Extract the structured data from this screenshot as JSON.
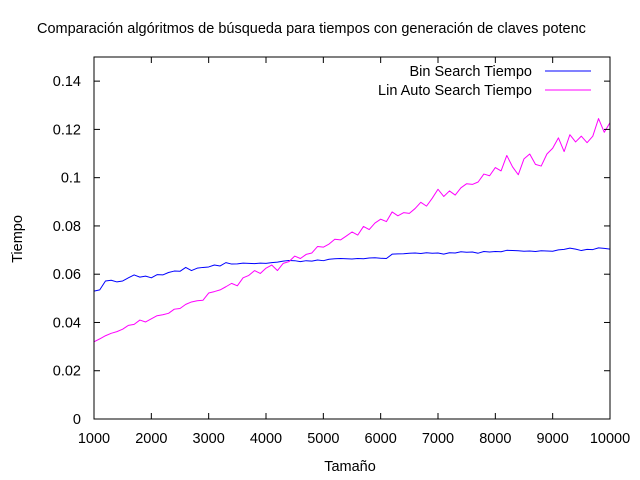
{
  "chart_data": {
    "type": "line",
    "title": "Comparación algóritmos de búsqueda para tiempos con generación de claves potenc",
    "xlabel": "Tamaño",
    "ylabel": "Tiempo",
    "xlim": [
      1000,
      10000
    ],
    "ylim": [
      0,
      0.15
    ],
    "xticks": [
      1000,
      2000,
      3000,
      4000,
      5000,
      6000,
      7000,
      8000,
      9000,
      10000
    ],
    "yticks": [
      0,
      0.02,
      0.04,
      0.06,
      0.08,
      0.1,
      0.12,
      0.14
    ],
    "xtick_labels": [
      "1000",
      "2000",
      "3000",
      "4000",
      "5000",
      "6000",
      "7000",
      "8000",
      "9000",
      "10000"
    ],
    "ytick_labels": [
      "0",
      "0.02",
      "0.04",
      "0.06",
      "0.08",
      "0.1",
      "0.12",
      "0.14"
    ],
    "grid": false,
    "legend_position": "top-right",
    "x": [
      1000,
      1100,
      1200,
      1300,
      1400,
      1500,
      1600,
      1700,
      1800,
      1900,
      2000,
      2100,
      2200,
      2300,
      2400,
      2500,
      2600,
      2700,
      2800,
      2900,
      3000,
      3100,
      3200,
      3300,
      3400,
      3500,
      3600,
      3700,
      3800,
      3900,
      4000,
      4100,
      4200,
      4300,
      4400,
      4500,
      4600,
      4700,
      4800,
      4900,
      5000,
      5100,
      5200,
      5300,
      5400,
      5500,
      5600,
      5700,
      5800,
      5900,
      6000,
      6100,
      6200,
      6300,
      6400,
      6500,
      6600,
      6700,
      6800,
      6900,
      7000,
      7100,
      7200,
      7300,
      7400,
      7500,
      7600,
      7700,
      7800,
      7900,
      8000,
      8100,
      8200,
      8300,
      8400,
      8500,
      8600,
      8700,
      8800,
      8900,
      9000,
      9100,
      9200,
      9300,
      9400,
      9500,
      9600,
      9700,
      9800,
      9900,
      10000
    ],
    "series": [
      {
        "name": "Bin Search Tiempo",
        "color": "#0000ff",
        "values": [
          0.053,
          0.0535,
          0.0572,
          0.0575,
          0.0568,
          0.0572,
          0.0585,
          0.0597,
          0.0588,
          0.0592,
          0.0585,
          0.0598,
          0.0597,
          0.0607,
          0.0613,
          0.0612,
          0.0628,
          0.0615,
          0.0625,
          0.0628,
          0.063,
          0.0638,
          0.0634,
          0.0648,
          0.0642,
          0.0643,
          0.0646,
          0.0645,
          0.0644,
          0.0646,
          0.0645,
          0.0648,
          0.065,
          0.0654,
          0.0657,
          0.0656,
          0.0652,
          0.0656,
          0.0654,
          0.0659,
          0.0656,
          0.0662,
          0.0664,
          0.0665,
          0.0664,
          0.0663,
          0.0665,
          0.0664,
          0.0667,
          0.0668,
          0.0666,
          0.0665,
          0.0683,
          0.0684,
          0.0685,
          0.0687,
          0.0688,
          0.0686,
          0.0689,
          0.0687,
          0.0688,
          0.0683,
          0.0689,
          0.0688,
          0.0693,
          0.0691,
          0.0692,
          0.0687,
          0.0694,
          0.0692,
          0.0694,
          0.0693,
          0.0699,
          0.0698,
          0.0697,
          0.0695,
          0.0696,
          0.0694,
          0.0697,
          0.0696,
          0.0695,
          0.0701,
          0.0703,
          0.0708,
          0.0704,
          0.0698,
          0.0703,
          0.0702,
          0.0709,
          0.0707,
          0.0704
        ]
      },
      {
        "name": "Lin Auto Search Tiempo",
        "color": "#ff00ff",
        "values": [
          0.032,
          0.0332,
          0.0345,
          0.0355,
          0.0362,
          0.0372,
          0.0388,
          0.0392,
          0.041,
          0.0402,
          0.0415,
          0.0428,
          0.0432,
          0.0438,
          0.0455,
          0.0458,
          0.0475,
          0.0485,
          0.049,
          0.0492,
          0.0522,
          0.0528,
          0.0535,
          0.0548,
          0.0562,
          0.0552,
          0.0585,
          0.0595,
          0.0615,
          0.0603,
          0.0625,
          0.0638,
          0.0615,
          0.0645,
          0.0652,
          0.0675,
          0.0665,
          0.0682,
          0.0688,
          0.0715,
          0.0712,
          0.0725,
          0.0745,
          0.0742,
          0.0758,
          0.0775,
          0.0762,
          0.0798,
          0.0785,
          0.0812,
          0.0828,
          0.0818,
          0.0858,
          0.0842,
          0.0855,
          0.0852,
          0.0872,
          0.0898,
          0.0882,
          0.0915,
          0.0952,
          0.0922,
          0.0945,
          0.0928,
          0.0958,
          0.0975,
          0.0972,
          0.0982,
          0.1015,
          0.1008,
          0.1042,
          0.1028,
          0.1092,
          0.1045,
          0.1012,
          0.1078,
          0.1098,
          0.1055,
          0.1048,
          0.1098,
          0.1122,
          0.1165,
          0.1108,
          0.1178,
          0.1148,
          0.1172,
          0.1145,
          0.1172,
          0.1245,
          0.1188,
          0.1228
        ]
      }
    ]
  }
}
